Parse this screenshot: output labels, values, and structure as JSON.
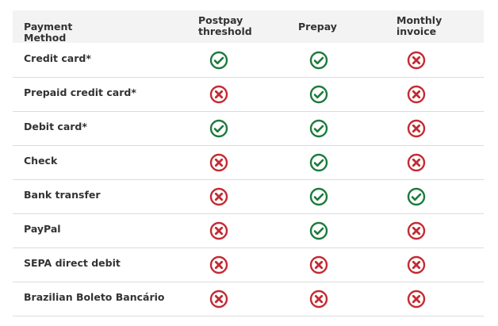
{
  "table": {
    "header": [
      "Payment Method",
      "Postpay threshold",
      "Prepay",
      "Monthly invoice"
    ],
    "rows": [
      [
        "Credit card*",
        true,
        true,
        false
      ],
      [
        "Prepaid credit card*",
        false,
        true,
        false
      ],
      [
        "Debit card*",
        true,
        true,
        false
      ],
      [
        "Check",
        false,
        true,
        false
      ],
      [
        "Bank transfer",
        false,
        true,
        true
      ],
      [
        "PayPal",
        false,
        true,
        false
      ],
      [
        "SEPA direct debit",
        false,
        false,
        false
      ],
      [
        "Brazilian Boleto Bancário",
        false,
        false,
        false
      ]
    ]
  }
}
